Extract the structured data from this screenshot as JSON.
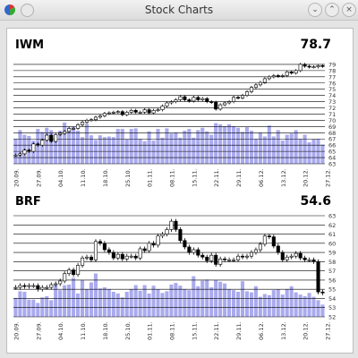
{
  "window": {
    "title": "Stock Charts",
    "icons": {
      "app": "stock-app-icon",
      "menu": "window-menu-icon",
      "minimize": "chevron-down-icon",
      "maximize": "chevron-up-icon",
      "close": "close-icon"
    }
  },
  "colors": {
    "volume": "#aaaaee",
    "candle": "#000000",
    "grid": "#000000"
  },
  "date_labels": [
    "20.09.",
    "27.09.",
    "04.10.",
    "11.10.",
    "18.10.",
    "25.10.",
    "01.11.",
    "08.11.",
    "15.11.",
    "22.11.",
    "29.11.",
    "06.12.",
    "13.12.",
    "20.12.",
    "27.12."
  ],
  "chart_data": [
    {
      "type": "candlestick",
      "symbol": "IWM",
      "last_value": "78.7",
      "ylim": [
        63,
        80
      ],
      "yticks": [
        63,
        64,
        65,
        66,
        67,
        68,
        69,
        70,
        71,
        72,
        73,
        74,
        75,
        76,
        77,
        78,
        79
      ],
      "close": [
        64.4,
        64.6,
        65.2,
        65.0,
        66.2,
        66.0,
        66.8,
        67.6,
        66.6,
        67.7,
        67.9,
        68.2,
        68.7,
        68.7,
        69.3,
        69.7,
        70.0,
        70.1,
        70.5,
        70.7,
        71.1,
        71.2,
        71.3,
        71.4,
        70.9,
        71.3,
        71.6,
        71.3,
        71.3,
        71.7,
        71.2,
        71.6,
        71.7,
        72.3,
        72.8,
        73.0,
        73.3,
        73.8,
        73.3,
        73.1,
        73.7,
        73.3,
        73.5,
        73.0,
        72.9,
        71.8,
        72.5,
        72.8,
        73.0,
        73.7,
        73.6,
        74.0,
        74.6,
        75.3,
        75.7,
        76.1,
        76.7,
        77.0,
        77.2,
        77.1,
        77.2,
        77.8,
        77.6,
        78.0,
        79.0,
        78.7,
        78.6,
        78.6,
        78.8,
        78.7
      ],
      "volume": [
        0.43,
        0.58,
        0.5,
        0.48,
        0.4,
        0.6,
        0.55,
        0.62,
        0.58,
        0.44,
        0.57,
        0.71,
        0.62,
        0.63,
        0.57,
        0.46,
        0.69,
        0.49,
        0.41,
        0.49,
        0.46,
        0.47,
        0.46,
        0.6,
        0.6,
        0.42,
        0.6,
        0.61,
        0.43,
        0.39,
        0.56,
        0.4,
        0.6,
        0.45,
        0.61,
        0.52,
        0.54,
        0.45,
        0.57,
        0.6,
        0.45,
        0.58,
        0.62,
        0.56,
        0.5,
        0.7,
        0.68,
        0.64,
        0.68,
        0.65,
        0.62,
        0.55,
        0.63,
        0.57,
        0.43,
        0.54,
        0.47,
        0.66,
        0.47,
        0.58,
        0.4,
        0.5,
        0.52,
        0.58,
        0.43,
        0.5,
        0.37,
        0.42,
        0.43,
        0.33
      ]
    },
    {
      "type": "candlestick",
      "symbol": "BRF",
      "last_value": "54.6",
      "ylim": [
        52,
        63
      ],
      "yticks": [
        52,
        53,
        54,
        55,
        56,
        57,
        58,
        59,
        60,
        61,
        62,
        63
      ],
      "close": [
        55.2,
        55.4,
        55.3,
        55.4,
        55.4,
        55.0,
        55.2,
        55.2,
        55.5,
        55.6,
        55.9,
        56.7,
        57.1,
        56.6,
        57.6,
        58.4,
        58.5,
        58.2,
        60.2,
        60.0,
        59.3,
        59.0,
        58.4,
        58.8,
        58.3,
        58.6,
        58.6,
        58.4,
        59.4,
        59.2,
        60.0,
        59.8,
        60.8,
        61.0,
        61.5,
        62.4,
        61.5,
        60.3,
        59.6,
        59.0,
        59.3,
        58.7,
        58.5,
        58.1,
        58.7,
        57.7,
        58.3,
        58.2,
        58.2,
        58.2,
        58.6,
        58.5,
        58.6,
        59.0,
        59.3,
        59.9,
        60.8,
        60.7,
        59.7,
        59.0,
        58.2,
        58.5,
        58.6,
        58.9,
        58.4,
        58.2,
        58.2,
        58.0,
        54.7,
        54.6
      ],
      "volume": [
        0.34,
        0.46,
        0.45,
        0.31,
        0.31,
        0.25,
        0.35,
        0.37,
        0.3,
        0.57,
        0.48,
        0.57,
        0.58,
        0.7,
        0.42,
        0.66,
        0.5,
        0.62,
        0.78,
        0.51,
        0.53,
        0.5,
        0.45,
        0.42,
        0.35,
        0.45,
        0.5,
        0.57,
        0.47,
        0.57,
        0.42,
        0.56,
        0.49,
        0.43,
        0.46,
        0.58,
        0.61,
        0.56,
        0.5,
        0.48,
        0.73,
        0.55,
        0.65,
        0.67,
        0.53,
        0.66,
        0.63,
        0.6,
        0.5,
        0.48,
        0.45,
        0.64,
        0.46,
        0.44,
        0.55,
        0.36,
        0.41,
        0.39,
        0.48,
        0.49,
        0.4,
        0.5,
        0.55,
        0.44,
        0.4,
        0.37,
        0.43,
        0.36,
        0.3,
        0.22
      ]
    }
  ]
}
